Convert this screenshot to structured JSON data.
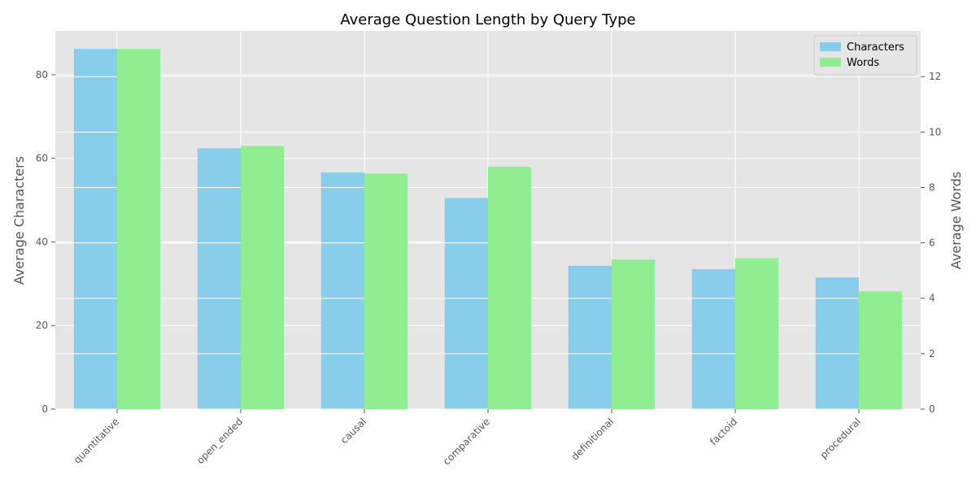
{
  "chart_data": {
    "type": "bar",
    "title": "Average Question Length by Query Type",
    "ylabel_left": "Average Characters",
    "ylabel_right": "Average Words",
    "categories": [
      "quantitative",
      "open_ended",
      "causal",
      "comparative",
      "definitional",
      "factoid",
      "procedural"
    ],
    "series": [
      {
        "name": "Characters",
        "axis": "left",
        "color": "#87ceeb",
        "values": [
          86.2,
          62.4,
          56.6,
          50.5,
          34.3,
          33.5,
          31.5
        ]
      },
      {
        "name": "Words",
        "axis": "right",
        "color": "#90ee90",
        "values": [
          13.0,
          9.5,
          8.5,
          8.75,
          5.4,
          5.45,
          4.25
        ]
      }
    ],
    "ylim_left": [
      0,
      90.5
    ],
    "ylim_right": [
      0,
      13.65
    ],
    "yticks_left": [
      0,
      20,
      40,
      60,
      80
    ],
    "yticks_right": [
      0,
      2,
      4,
      6,
      8,
      10,
      12
    ],
    "grid": true,
    "legend_position": "top-right",
    "background_color": "#e5e5e5",
    "grid_color": "#ffffff"
  }
}
